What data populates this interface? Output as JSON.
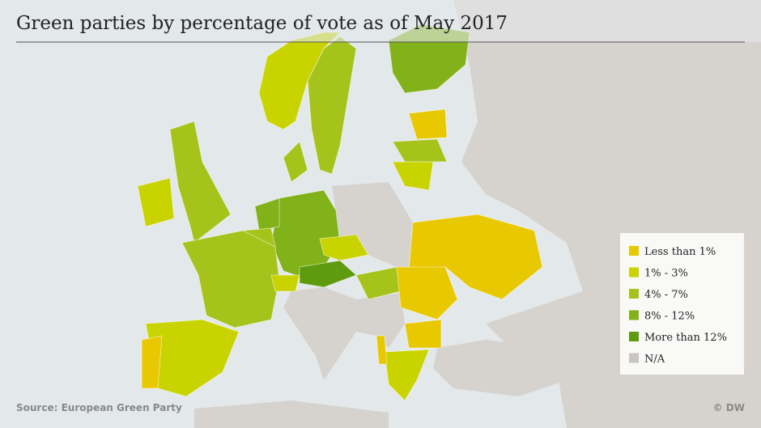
{
  "title": "Green parties by percentage of vote as of May 2017",
  "legend": [
    {
      "label": "Less than 1%",
      "color": "#e8c800"
    },
    {
      "label": "1% - 3%",
      "color": "#c9d300"
    },
    {
      "label": "4% - 7%",
      "color": "#a6c31c"
    },
    {
      "label": "8% - 12%",
      "color": "#82b21a"
    },
    {
      "label": "More than 12%",
      "color": "#5e9b0f"
    },
    {
      "label": "N/A",
      "color": "#c9c6c1"
    }
  ],
  "source": "Source: European Green Party",
  "credit": "© DW"
}
